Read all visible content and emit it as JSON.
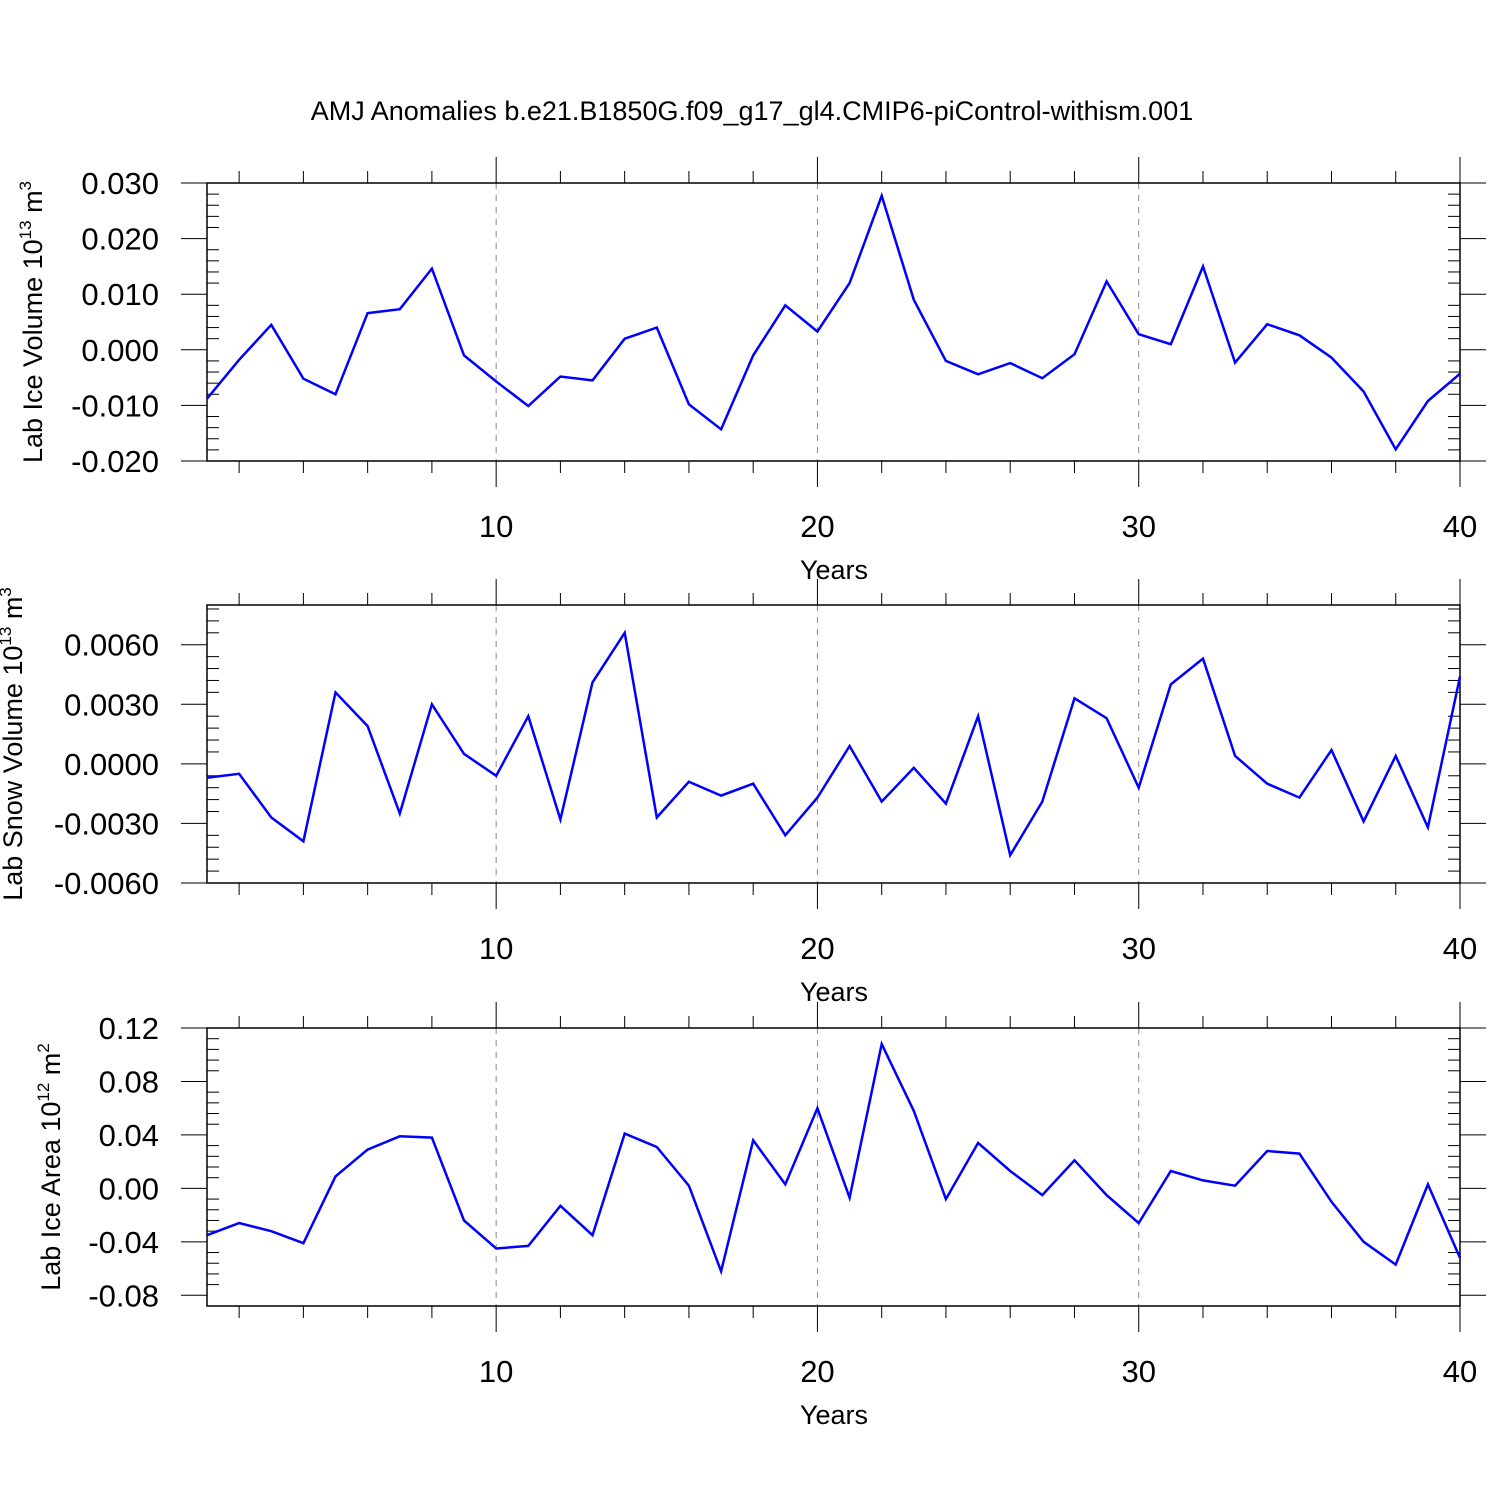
{
  "title": "AMJ Anomalies b.e21.B1850G.f09_g17_gl4.CMIP6-piControl-withism.001",
  "colors": {
    "series": "#0000ff",
    "grid": "#888888",
    "axis": "#000000"
  },
  "chart_data": [
    {
      "type": "line",
      "xlabel": "Years",
      "ylabel": {
        "text": "Lab Ice Volume 10",
        "exp": "13",
        "unit": " m",
        "unit_exp": "3"
      },
      "xlim": [
        1,
        40
      ],
      "ylim": [
        -0.02,
        0.03
      ],
      "xticks": [
        10,
        20,
        30,
        40
      ],
      "xtick_labels": [
        "10",
        "20",
        "30",
        "40"
      ],
      "yticks": [
        0.03,
        0.02,
        0.01,
        0.0,
        -0.01,
        -0.02
      ],
      "ytick_labels": [
        "0.030",
        "0.020",
        "0.010",
        "0.000",
        "-0.010",
        "-0.020"
      ],
      "grid": "vertical dashed at major x ticks",
      "x": [
        1,
        2,
        3,
        4,
        5,
        6,
        7,
        8,
        9,
        10,
        11,
        12,
        13,
        14,
        15,
        16,
        17,
        18,
        19,
        20,
        21,
        22,
        23,
        24,
        25,
        26,
        27,
        28,
        29,
        30,
        31,
        32,
        33,
        34,
        35,
        36,
        37,
        38,
        39,
        40
      ],
      "values": [
        -0.0088,
        -0.0018,
        0.0045,
        -0.0052,
        -0.008,
        0.0066,
        0.0073,
        0.0146,
        -0.001,
        -0.0057,
        -0.0101,
        -0.0048,
        -0.0055,
        0.002,
        0.004,
        -0.0098,
        -0.0143,
        -0.001,
        0.008,
        0.0033,
        0.012,
        0.0277,
        0.009,
        -0.002,
        -0.0044,
        -0.0024,
        -0.0051,
        -0.0008,
        0.0123,
        0.0028,
        0.001,
        0.015,
        -0.0023,
        0.0046,
        0.0026,
        -0.0014,
        -0.0075,
        -0.0179,
        -0.0092,
        -0.0043
      ]
    },
    {
      "type": "line",
      "xlabel": "Years",
      "ylabel": {
        "text": "Lab Snow Volume 10",
        "exp": "13",
        "unit": " m",
        "unit_exp": "3"
      },
      "xlim": [
        1,
        40
      ],
      "ylim": [
        -0.006,
        0.008
      ],
      "xticks": [
        10,
        20,
        30,
        40
      ],
      "xtick_labels": [
        "10",
        "20",
        "30",
        "40"
      ],
      "yticks": [
        0.006,
        0.003,
        0.0,
        -0.003,
        -0.006
      ],
      "ytick_labels": [
        "0.0060",
        "0.0030",
        "0.0000",
        "-0.0030",
        "-0.0060"
      ],
      "grid": "vertical dashed at major x ticks",
      "x": [
        1,
        2,
        3,
        4,
        5,
        6,
        7,
        8,
        9,
        10,
        11,
        12,
        13,
        14,
        15,
        16,
        17,
        18,
        19,
        20,
        21,
        22,
        23,
        24,
        25,
        26,
        27,
        28,
        29,
        30,
        31,
        32,
        33,
        34,
        35,
        36,
        37,
        38,
        39,
        40
      ],
      "values": [
        -0.0007,
        -0.0005,
        -0.0027,
        -0.0039,
        0.0036,
        0.0019,
        -0.0025,
        0.003,
        0.0005,
        -0.0006,
        0.0024,
        -0.0028,
        0.0041,
        0.0066,
        -0.0027,
        -0.0009,
        -0.0016,
        -0.001,
        -0.0036,
        -0.0017,
        0.0009,
        -0.0019,
        -0.0002,
        -0.002,
        0.0024,
        -0.0046,
        -0.0019,
        0.0033,
        0.0023,
        -0.0012,
        0.004,
        0.0053,
        0.0004,
        -0.001,
        -0.0017,
        0.0007,
        -0.0029,
        0.0004,
        -0.0032,
        0.0044
      ]
    },
    {
      "type": "line",
      "xlabel": "Years",
      "ylabel": {
        "text": "Lab Ice Area 10",
        "exp": "12",
        "unit": " m",
        "unit_exp": "2"
      },
      "xlim": [
        1,
        40
      ],
      "ylim": [
        -0.088,
        0.12
      ],
      "xticks": [
        10,
        20,
        30,
        40
      ],
      "xtick_labels": [
        "10",
        "20",
        "30",
        "40"
      ],
      "yticks": [
        0.12,
        0.08,
        0.04,
        0.0,
        -0.04,
        -0.08
      ],
      "ytick_labels": [
        "0.12",
        "0.08",
        "0.04",
        "0.00",
        "-0.04",
        "-0.08"
      ],
      "grid": "vertical dashed at major x ticks",
      "x": [
        1,
        2,
        3,
        4,
        5,
        6,
        7,
        8,
        9,
        10,
        11,
        12,
        13,
        14,
        15,
        16,
        17,
        18,
        19,
        20,
        21,
        22,
        23,
        24,
        25,
        26,
        27,
        28,
        29,
        30,
        31,
        32,
        33,
        34,
        35,
        36,
        37,
        38,
        39,
        40
      ],
      "values": [
        -0.035,
        -0.026,
        -0.032,
        -0.041,
        0.009,
        0.029,
        0.039,
        0.038,
        -0.024,
        -0.045,
        -0.043,
        -0.013,
        -0.035,
        0.041,
        0.031,
        0.002,
        -0.062,
        0.036,
        0.003,
        0.06,
        -0.007,
        0.108,
        0.058,
        -0.008,
        0.034,
        0.013,
        -0.005,
        0.021,
        -0.005,
        -0.026,
        0.013,
        0.006,
        0.002,
        0.028,
        0.026,
        -0.01,
        -0.04,
        -0.057,
        0.003,
        -0.052
      ]
    }
  ]
}
